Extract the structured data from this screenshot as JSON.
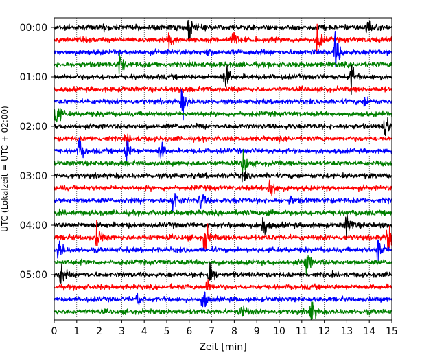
{
  "chart_data": {
    "type": "line",
    "title": "",
    "xlabel": "Zeit  [min]",
    "ylabel": "UTC (Lokalzeit = UTC + 02:00)",
    "xlim": [
      0,
      15
    ],
    "x_ticks": [
      "0",
      "1",
      "2",
      "3",
      "4",
      "5",
      "6",
      "7",
      "8",
      "9",
      "10",
      "11",
      "12",
      "13",
      "14",
      "15"
    ],
    "y_ticks": [
      "00:00",
      "01:00",
      "02:00",
      "03:00",
      "04:00",
      "05:00"
    ],
    "grid": "vertical-dotted",
    "trace_interval_minutes": 15,
    "colors": [
      "#000000",
      "#ff0000",
      "#0000ff",
      "#008000"
    ],
    "traces": [
      {
        "start": "00:00",
        "color": "#000000",
        "events": [
          {
            "t": 6.0,
            "amp": 1.0
          },
          {
            "t": 13.9,
            "amp": 0.8
          },
          {
            "t": 2.2,
            "amp": 0.2
          }
        ]
      },
      {
        "start": "00:15",
        "color": "#ff0000",
        "events": [
          {
            "t": 5.1,
            "amp": 0.8
          },
          {
            "t": 7.9,
            "amp": 0.9
          },
          {
            "t": 11.7,
            "amp": 1.3
          }
        ]
      },
      {
        "start": "00:30",
        "color": "#0000ff",
        "events": [
          {
            "t": 12.5,
            "amp": 1.6
          },
          {
            "t": 6.8,
            "amp": 0.3
          }
        ]
      },
      {
        "start": "00:45",
        "color": "#008000",
        "events": [
          {
            "t": 2.9,
            "amp": 1.0
          }
        ]
      },
      {
        "start": "01:00",
        "color": "#000000",
        "events": [
          {
            "t": 7.6,
            "amp": 1.2
          },
          {
            "t": 13.2,
            "amp": 1.1
          }
        ]
      },
      {
        "start": "01:15",
        "color": "#ff0000",
        "events": [
          {
            "t": 5.6,
            "amp": 0.3
          }
        ]
      },
      {
        "start": "01:30",
        "color": "#0000ff",
        "events": [
          {
            "t": 5.7,
            "amp": 1.3
          },
          {
            "t": 13.8,
            "amp": 0.4
          }
        ]
      },
      {
        "start": "01:45",
        "color": "#008000",
        "events": [
          {
            "t": 0.1,
            "amp": 1.2
          }
        ]
      },
      {
        "start": "02:00",
        "color": "#000000",
        "events": [
          {
            "t": 14.7,
            "amp": 1.3
          }
        ]
      },
      {
        "start": "02:15",
        "color": "#ff0000",
        "events": [
          {
            "t": 3.2,
            "amp": 0.3
          }
        ]
      },
      {
        "start": "02:30",
        "color": "#0000ff",
        "events": [
          {
            "t": 1.1,
            "amp": 1.0
          },
          {
            "t": 3.2,
            "amp": 1.2
          },
          {
            "t": 4.7,
            "amp": 1.0
          }
        ]
      },
      {
        "start": "02:45",
        "color": "#008000",
        "events": [
          {
            "t": 8.4,
            "amp": 1.2
          }
        ]
      },
      {
        "start": "03:00",
        "color": "#000000",
        "events": [
          {
            "t": 8.4,
            "amp": 0.4
          }
        ]
      },
      {
        "start": "03:15",
        "color": "#ff0000",
        "events": [
          {
            "t": 9.6,
            "amp": 1.7
          }
        ]
      },
      {
        "start": "03:30",
        "color": "#0000ff",
        "events": [
          {
            "t": 5.3,
            "amp": 1.1
          },
          {
            "t": 6.5,
            "amp": 1.0
          },
          {
            "t": 10.5,
            "amp": 0.3
          }
        ]
      },
      {
        "start": "03:45",
        "color": "#008000",
        "events": [
          {
            "t": 9.5,
            "amp": 0.3
          }
        ]
      },
      {
        "start": "04:00",
        "color": "#000000",
        "events": [
          {
            "t": 9.3,
            "amp": 1.1
          },
          {
            "t": 13.0,
            "amp": 1.2
          }
        ]
      },
      {
        "start": "04:15",
        "color": "#ff0000",
        "events": [
          {
            "t": 1.9,
            "amp": 1.0
          },
          {
            "t": 6.7,
            "amp": 1.5
          },
          {
            "t": 14.8,
            "amp": 1.4
          }
        ]
      },
      {
        "start": "04:30",
        "color": "#0000ff",
        "events": [
          {
            "t": 0.2,
            "amp": 1.0
          },
          {
            "t": 14.4,
            "amp": 1.2
          }
        ]
      },
      {
        "start": "04:45",
        "color": "#008000",
        "events": [
          {
            "t": 11.2,
            "amp": 1.2
          }
        ]
      },
      {
        "start": "05:00",
        "color": "#000000",
        "events": [
          {
            "t": 0.3,
            "amp": 1.1
          },
          {
            "t": 6.9,
            "amp": 1.4
          }
        ]
      },
      {
        "start": "05:15",
        "color": "#ff0000",
        "events": [
          {
            "t": 6.8,
            "amp": 0.5
          }
        ]
      },
      {
        "start": "05:30",
        "color": "#0000ff",
        "events": [
          {
            "t": 6.6,
            "amp": 1.2
          },
          {
            "t": 3.7,
            "amp": 0.5
          }
        ]
      },
      {
        "start": "05:45",
        "color": "#008000",
        "events": [
          {
            "t": 8.3,
            "amp": 1.0
          },
          {
            "t": 11.4,
            "amp": 1.2
          }
        ]
      }
    ]
  }
}
